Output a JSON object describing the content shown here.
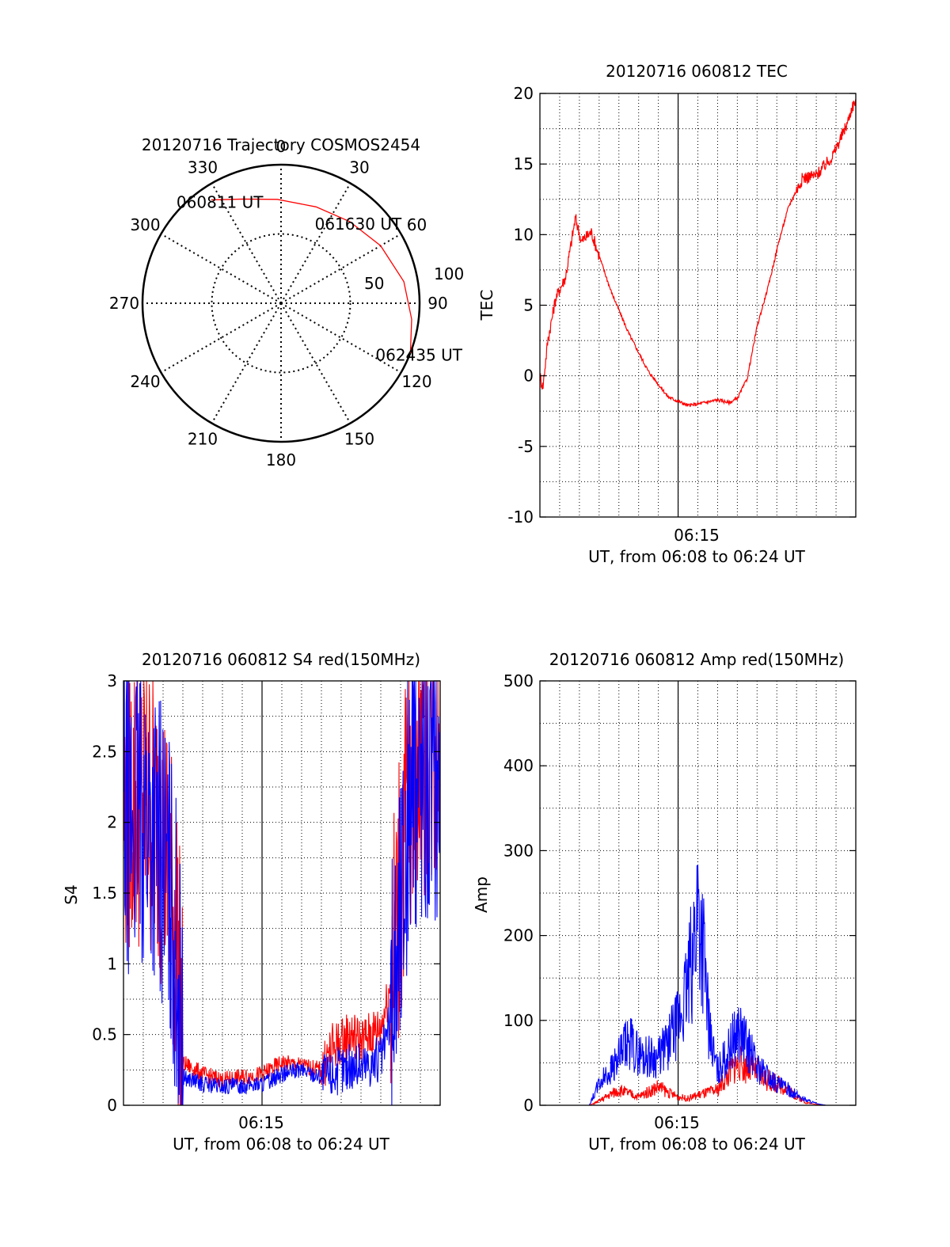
{
  "chart_data": [
    {
      "id": "polar",
      "type": "scatter",
      "title": "20120716 Trajectory COSMOS2454",
      "azimuth_labels": [
        "0",
        "30",
        "60",
        "90",
        "120",
        "150",
        "180",
        "210",
        "240",
        "270",
        "300",
        "330"
      ],
      "zenith_ring_labels": [
        "50",
        "100"
      ],
      "trajectory": {
        "color": "#ff0000",
        "points": [
          {
            "az": 326,
            "zen": 90
          },
          {
            "az": 340,
            "zen": 80
          },
          {
            "az": 358,
            "zen": 75
          },
          {
            "az": 20,
            "zen": 74
          },
          {
            "az": 40,
            "zen": 77
          },
          {
            "az": 60,
            "zen": 83
          },
          {
            "az": 80,
            "zen": 90
          },
          {
            "az": 97,
            "zen": 95
          },
          {
            "az": 111,
            "zen": 100
          }
        ],
        "labels": [
          {
            "text": "060811 UT",
            "at": 0
          },
          {
            "text": "061630 UT",
            "at": 4
          },
          {
            "text": "062435 UT",
            "at": 8
          }
        ]
      }
    },
    {
      "id": "tec",
      "type": "line",
      "title": "20120716 060812 TEC",
      "ylabel": "TEC",
      "xlabel": "UT, from 06:08 to 06:24 UT",
      "xtick_label": "06:15",
      "yticks": [
        "-10",
        "-5",
        "0",
        "5",
        "10",
        "15",
        "20"
      ],
      "ylim": [
        -10,
        20
      ],
      "series": [
        {
          "color": "#ff0000",
          "x": [
            0.0,
            0.15,
            0.4,
            0.8,
            1.3,
            1.8,
            2.1,
            2.6,
            3.0,
            3.6,
            4.5,
            5.5,
            6.5,
            7.5,
            8.0,
            9.0,
            9.6,
            10.0,
            10.5,
            11.0,
            11.6,
            12.1,
            12.6,
            13.3,
            14.0,
            14.8,
            15.3,
            15.6,
            15.8,
            16.0
          ],
          "y": [
            0.0,
            -0.8,
            2.5,
            5.5,
            7.0,
            11.2,
            9.5,
            10.2,
            8.5,
            6.0,
            3.0,
            0.3,
            -1.5,
            -2.1,
            -2.0,
            -1.7,
            -1.9,
            -1.6,
            -0.2,
            3.5,
            6.5,
            9.5,
            12.0,
            14.0,
            14.2,
            15.5,
            17.0,
            18.0,
            19.0,
            19.5
          ]
        }
      ]
    },
    {
      "id": "s4",
      "type": "line",
      "title": "20120716 060812 S4 red(150MHz)",
      "ylabel": "S4",
      "xlabel": "UT, from 06:08 to 06:24 UT",
      "xtick_label": "06:15",
      "yticks": [
        "0",
        "0.5",
        "1",
        "1.5",
        "2",
        "2.5",
        "3"
      ],
      "ylim": [
        0,
        3
      ],
      "series": [
        {
          "color": "#ff0000",
          "x": [
            0.0,
            1.0,
            2.0,
            2.7,
            3.0,
            4.0,
            5.0,
            6.0,
            7.0,
            8.0,
            9.0,
            10.0,
            10.5,
            11.0,
            11.5,
            12.0,
            12.5,
            13.0,
            13.5,
            14.0,
            14.5,
            15.0,
            15.5,
            16.0
          ],
          "y": [
            2.1,
            2.2,
            1.9,
            1.2,
            0.3,
            0.22,
            0.18,
            0.2,
            0.22,
            0.3,
            0.28,
            0.25,
            0.4,
            0.45,
            0.5,
            0.45,
            0.5,
            0.55,
            0.85,
            1.6,
            2.3,
            2.6,
            2.5,
            2.6
          ]
        },
        {
          "color": "#0000ff",
          "x": [
            0.0,
            1.0,
            2.0,
            2.7,
            3.0,
            4.0,
            5.0,
            6.0,
            7.0,
            8.0,
            9.0,
            10.0,
            10.5,
            11.0,
            11.5,
            12.0,
            12.5,
            13.0,
            13.5,
            14.0,
            14.5,
            15.0,
            15.5,
            16.0
          ],
          "y": [
            2.0,
            2.1,
            1.8,
            1.1,
            0.2,
            0.15,
            0.13,
            0.14,
            0.15,
            0.22,
            0.25,
            0.2,
            0.22,
            0.25,
            0.28,
            0.28,
            0.3,
            0.32,
            0.6,
            1.4,
            2.2,
            2.4,
            2.3,
            2.4
          ]
        }
      ]
    },
    {
      "id": "amp",
      "type": "line",
      "title": "20120716 060812 Amp red(150MHz)",
      "ylabel": "Amp",
      "xlabel": "UT, from 06:08 to 06:24 UT",
      "xtick_label": "06:15",
      "yticks": [
        "0",
        "100",
        "200",
        "300",
        "400",
        "500"
      ],
      "ylim": [
        0,
        500
      ],
      "series": [
        {
          "color": "#ff0000",
          "x": [
            0.0,
            2.5,
            3.0,
            3.5,
            4.0,
            5.0,
            6.0,
            6.5,
            7.0,
            7.5,
            8.0,
            9.0,
            9.5,
            10.0,
            11.0,
            11.5,
            12.0,
            12.5,
            13.0,
            13.5,
            14.0,
            14.5,
            16.0
          ],
          "y": [
            0,
            0,
            5,
            12,
            18,
            10,
            22,
            15,
            10,
            8,
            12,
            18,
            35,
            50,
            40,
            30,
            25,
            20,
            10,
            3,
            1,
            0,
            0
          ]
        },
        {
          "color": "#0000ff",
          "x": [
            0.0,
            2.5,
            3.0,
            3.5,
            4.0,
            4.5,
            5.0,
            6.0,
            6.5,
            7.0,
            7.5,
            7.8,
            8.0,
            8.3,
            8.6,
            9.0,
            9.5,
            10.0,
            10.5,
            11.0,
            11.5,
            12.0,
            12.5,
            13.0,
            13.5,
            14.0,
            14.5,
            16.0
          ],
          "y": [
            0,
            0,
            25,
            40,
            55,
            75,
            60,
            55,
            75,
            95,
            140,
            190,
            240,
            180,
            80,
            40,
            60,
            90,
            70,
            45,
            35,
            25,
            20,
            12,
            6,
            2,
            0,
            0
          ]
        }
      ]
    }
  ]
}
